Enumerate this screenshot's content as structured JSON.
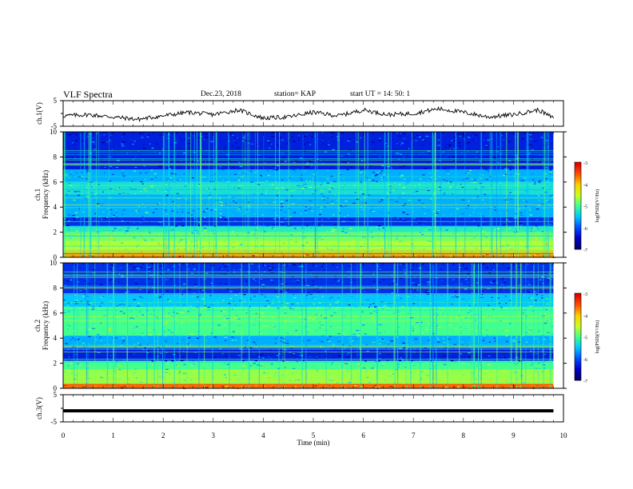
{
  "header": {
    "title": "VLF Spectra",
    "date": "Dec.23, 2018",
    "station": "station= KAP",
    "start_ut": "start  UT =   14: 50: 1"
  },
  "colors": {
    "waveform": "#000000",
    "colormap": [
      "#00006a",
      "#0000c8",
      "#0050ff",
      "#00c8ff",
      "#40ff90",
      "#c8ff20",
      "#ffd000",
      "#ff5000",
      "#e00000",
      "#ffffff"
    ]
  },
  "chart_data": [
    {
      "type": "line",
      "panel": "ch1-waveform",
      "ylabel": "ch.1(V)",
      "ylim": [
        -5,
        5
      ],
      "yticks": [
        "5",
        "-5"
      ],
      "xlim": [
        0,
        10
      ],
      "x": [
        0.0,
        0.5,
        1.0,
        1.5,
        2.0,
        2.5,
        3.0,
        3.5,
        4.0,
        4.5,
        5.0,
        5.5,
        6.0,
        6.5,
        7.0,
        7.5,
        8.0,
        8.5,
        9.0,
        9.5,
        9.8
      ],
      "values": [
        -1.0,
        -0.5,
        -1.5,
        -2.5,
        -1.0,
        0.5,
        -0.5,
        1.5,
        -2.0,
        -1.5,
        0.5,
        -1.0,
        1.5,
        -0.5,
        0.0,
        2.0,
        0.5,
        -1.5,
        -0.5,
        1.5,
        -2.0
      ]
    },
    {
      "type": "heatmap",
      "panel": "ch1-spectrogram",
      "ylabel": "ch.1\nFrequency (kHz)",
      "xlim": [
        0,
        9.8
      ],
      "ylim": [
        0,
        10
      ],
      "yticks": [
        "0",
        "2",
        "4",
        "6",
        "8",
        "10"
      ],
      "colorbar": {
        "label": "log(PSD)(V²/Hz)",
        "range": [
          -7,
          -3
        ],
        "ticks": [
          "-3",
          "-4",
          "-5",
          "-6",
          "-7"
        ]
      },
      "background_levels": [
        {
          "f": [
            0.0,
            0.3
          ],
          "level": -3.8
        },
        {
          "f": [
            0.3,
            1.3
          ],
          "level": -4.6
        },
        {
          "f": [
            1.3,
            2.0
          ],
          "level": -4.8
        },
        {
          "f": [
            2.0,
            2.5
          ],
          "level": -5.2
        },
        {
          "f": [
            2.5,
            3.2
          ],
          "level": -6.2
        },
        {
          "f": [
            3.2,
            5.0
          ],
          "level": -5.6
        },
        {
          "f": [
            5.0,
            6.0
          ],
          "level": -5.3
        },
        {
          "f": [
            6.0,
            7.0
          ],
          "level": -5.6
        },
        {
          "f": [
            7.0,
            10.0
          ],
          "level": -6.3
        }
      ]
    },
    {
      "type": "heatmap",
      "panel": "ch2-spectrogram",
      "ylabel": "ch.2\nFrequency (kHz)",
      "xlim": [
        0,
        9.8
      ],
      "ylim": [
        0,
        10
      ],
      "yticks": [
        "0",
        "2",
        "4",
        "6",
        "8",
        "10"
      ],
      "colorbar": {
        "label": "log(PSD)(V²/Hz)",
        "range": [
          -7,
          -3
        ],
        "ticks": [
          "-3",
          "-4",
          "-5",
          "-6",
          "-7"
        ]
      },
      "background_levels": [
        {
          "f": [
            0.0,
            0.3
          ],
          "level": -3.6
        },
        {
          "f": [
            0.3,
            1.5
          ],
          "level": -4.7
        },
        {
          "f": [
            1.5,
            2.2
          ],
          "level": -5.0
        },
        {
          "f": [
            2.2,
            3.2
          ],
          "level": -6.3
        },
        {
          "f": [
            3.2,
            4.2
          ],
          "level": -5.6
        },
        {
          "f": [
            4.2,
            6.5
          ],
          "level": -5.0
        },
        {
          "f": [
            6.5,
            7.5
          ],
          "level": -5.5
        },
        {
          "f": [
            7.5,
            10.0
          ],
          "level": -6.2
        }
      ]
    },
    {
      "type": "line",
      "panel": "ch3-waveform",
      "ylabel": "ch.3(V)",
      "ylim": [
        -5,
        5
      ],
      "yticks": [
        "5",
        "-5"
      ],
      "xlim": [
        0,
        10
      ],
      "x": [
        0.0,
        9.8
      ],
      "values": [
        -1.0,
        -1.0
      ],
      "xlabel": "Time (min)",
      "xticks": [
        "0",
        "1",
        "2",
        "3",
        "4",
        "5",
        "6",
        "7",
        "8",
        "9",
        "10"
      ]
    }
  ]
}
